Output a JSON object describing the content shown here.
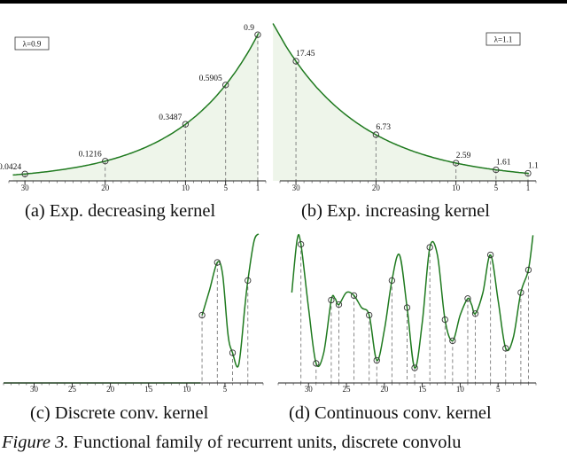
{
  "figure": {
    "caption_prefix": "Figure 3.",
    "caption_text": "Functional family of recurrent units, discrete convolu"
  },
  "colors": {
    "curve": "#1f7a1f",
    "fill": "#eef5ea",
    "dashed": "#7a7a7a",
    "marker": "#333333"
  },
  "chart_data": [
    {
      "type": "line",
      "panel": "a",
      "caption": "(a) Exp. decreasing kernel",
      "legend": "λ=0.9",
      "x_ticks": [
        "30",
        "20",
        "10",
        "5",
        "1"
      ],
      "x_reversed": true,
      "xlim": [
        32,
        0
      ],
      "ylim": [
        0,
        0.95
      ],
      "series": [
        {
          "x": [
            30,
            20,
            10,
            5,
            1
          ],
          "y": [
            0.0424,
            0.1216,
            0.3487,
            0.5905,
            0.9
          ],
          "labels": [
            "0.0424",
            "0.1216",
            "0.3487",
            "0.5905",
            "0.9"
          ]
        }
      ],
      "grid": false
    },
    {
      "type": "line",
      "panel": "b",
      "caption": "(b) Exp. increasing kernel",
      "legend": "λ=1.1",
      "x_ticks": [
        "30",
        "20",
        "10",
        "5",
        "1"
      ],
      "x_reversed": true,
      "xlim": [
        32,
        0
      ],
      "ylim": [
        0,
        22.5
      ],
      "series": [
        {
          "x": [
            30,
            20,
            10,
            5,
            1
          ],
          "y": [
            17.45,
            6.73,
            2.59,
            1.61,
            1.1
          ],
          "labels": [
            "17.45",
            "6.73",
            "2.59",
            "1.61",
            "1.1"
          ]
        }
      ],
      "grid": false
    },
    {
      "type": "line",
      "panel": "c",
      "caption": "(c) Discrete conv. kernel",
      "x_ticks": [
        "30",
        "25",
        "20",
        "15",
        "10",
        "5"
      ],
      "x_reversed": true,
      "xlim": [
        34,
        0
      ],
      "ylim": [
        0,
        1
      ],
      "series": [
        {
          "x": [
            8,
            6,
            4,
            2
          ],
          "y": [
            0.45,
            0.8,
            0.2,
            0.68
          ]
        }
      ],
      "grid": false
    },
    {
      "type": "line",
      "panel": "d",
      "caption": "(d) Continuous conv. kernel",
      "x_ticks": [
        "30",
        "25",
        "20",
        "15",
        "10",
        "5"
      ],
      "x_reversed": true,
      "xlim": [
        34,
        0
      ],
      "ylim": [
        0,
        1
      ],
      "series": [
        {
          "x": [
            31,
            29,
            27,
            26,
            24,
            22,
            21,
            19,
            17,
            16,
            14,
            12,
            11,
            9,
            8,
            6,
            4,
            2,
            1
          ],
          "y": [
            0.92,
            0.13,
            0.55,
            0.52,
            0.58,
            0.45,
            0.15,
            0.68,
            0.5,
            0.1,
            0.9,
            0.42,
            0.28,
            0.56,
            0.46,
            0.85,
            0.23,
            0.6,
            0.75
          ]
        }
      ],
      "grid": false
    }
  ]
}
